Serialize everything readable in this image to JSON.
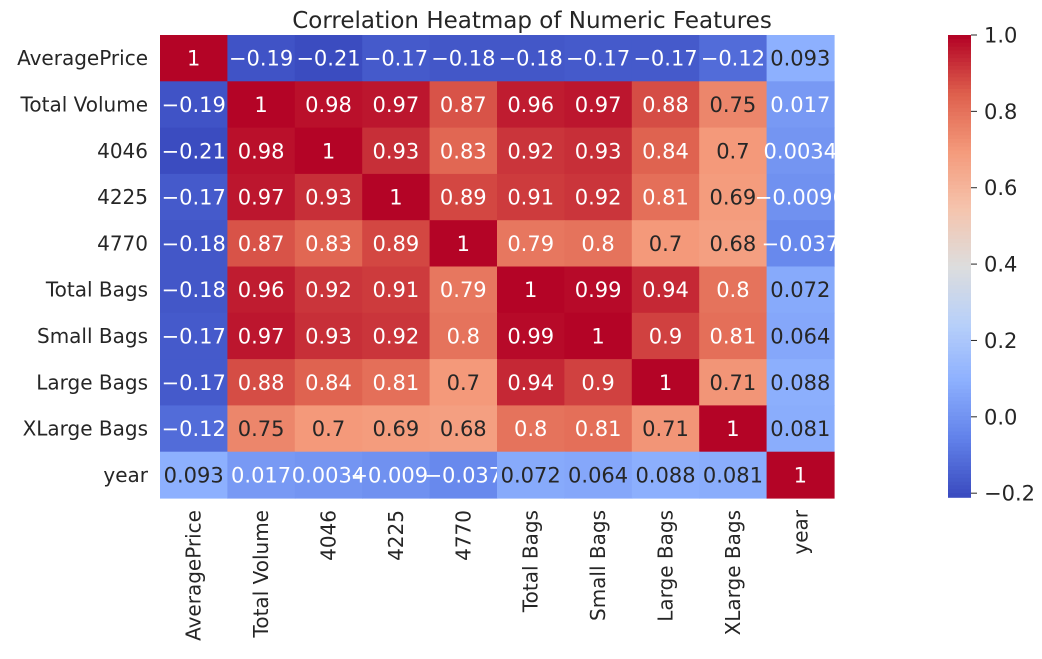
{
  "chart_data": {
    "type": "heatmap",
    "title": "Correlation Heatmap of Numeric Features",
    "rows": [
      "AveragePrice",
      "Total Volume",
      "4046",
      "4225",
      "4770",
      "Total Bags",
      "Small Bags",
      "Large Bags",
      "XLarge Bags",
      "year"
    ],
    "columns": [
      "AveragePrice",
      "Total Volume",
      "4046",
      "4225",
      "4770",
      "Total Bags",
      "Small Bags",
      "Large Bags",
      "XLarge Bags",
      "year"
    ],
    "values": [
      [
        1,
        -0.19,
        -0.21,
        -0.17,
        -0.18,
        -0.18,
        -0.17,
        -0.17,
        -0.12,
        0.093
      ],
      [
        -0.19,
        1,
        0.98,
        0.97,
        0.87,
        0.96,
        0.97,
        0.88,
        0.75,
        0.017
      ],
      [
        -0.21,
        0.98,
        1,
        0.93,
        0.83,
        0.92,
        0.93,
        0.84,
        0.7,
        0.0034
      ],
      [
        -0.17,
        0.97,
        0.93,
        1,
        0.89,
        0.91,
        0.92,
        0.81,
        0.69,
        -0.0096
      ],
      [
        -0.18,
        0.87,
        0.83,
        0.89,
        1,
        0.79,
        0.8,
        0.7,
        0.68,
        -0.037
      ],
      [
        -0.18,
        0.96,
        0.92,
        0.91,
        0.79,
        1,
        0.99,
        0.94,
        0.8,
        0.072
      ],
      [
        -0.17,
        0.97,
        0.93,
        0.92,
        0.8,
        0.99,
        1,
        0.9,
        0.81,
        0.064
      ],
      [
        -0.17,
        0.88,
        0.84,
        0.81,
        0.7,
        0.94,
        0.9,
        1,
        0.71,
        0.088
      ],
      [
        -0.12,
        0.75,
        0.7,
        0.69,
        0.68,
        0.8,
        0.81,
        0.71,
        1,
        0.081
      ],
      [
        0.093,
        0.017,
        0.0034,
        -0.0096,
        -0.037,
        0.072,
        0.064,
        0.088,
        0.081,
        1
      ]
    ],
    "colormap": "coolwarm",
    "vmin": -0.21,
    "vmax": 1,
    "colorbar_ticks": [
      1.0,
      0.8,
      0.6,
      0.4,
      0.2,
      0.0,
      -0.2
    ],
    "colorbar_tick_labels": [
      "1.0",
      "0.8",
      "0.6",
      "0.4",
      "0.2",
      "0.0",
      "−0.2"
    ],
    "colorbar_position": "right"
  }
}
